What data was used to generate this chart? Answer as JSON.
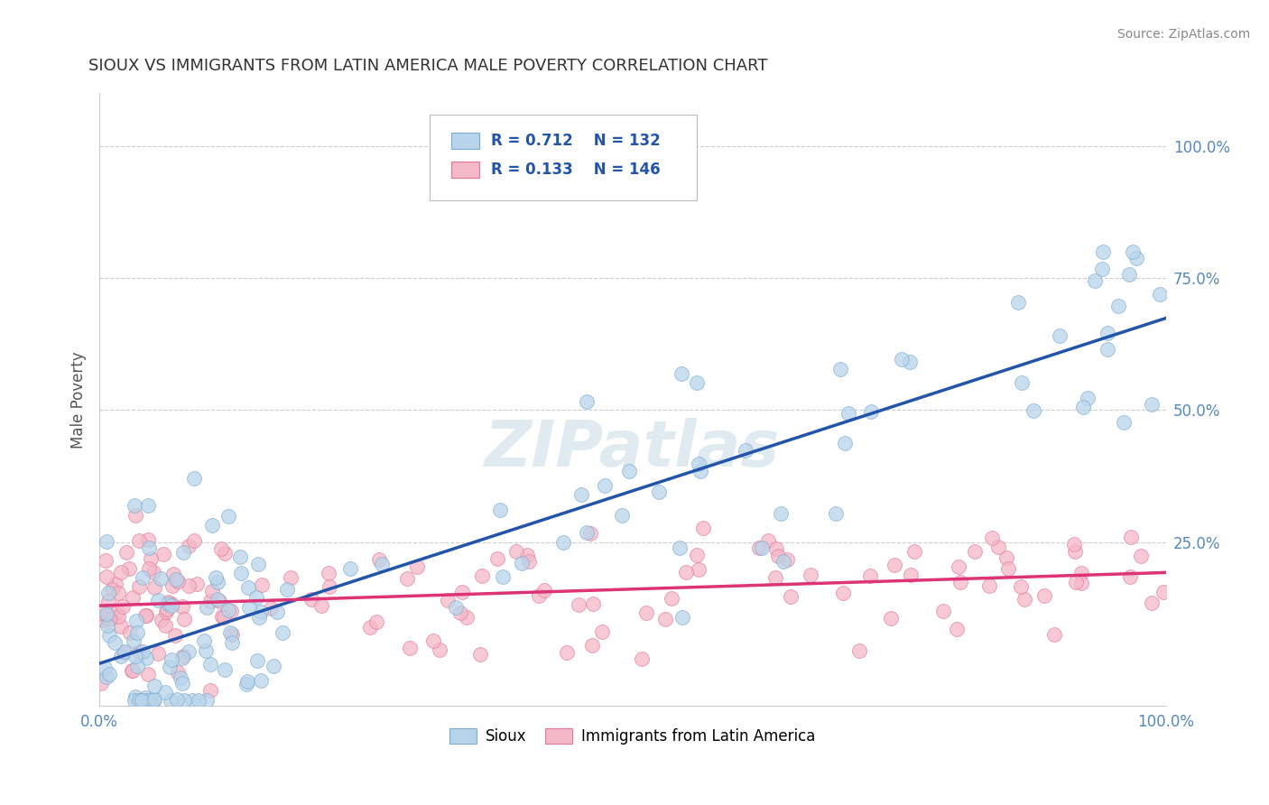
{
  "title": "SIOUX VS IMMIGRANTS FROM LATIN AMERICA MALE POVERTY CORRELATION CHART",
  "source": "Source: ZipAtlas.com",
  "ylabel": "Male Poverty",
  "sioux_color": "#b8d4ea",
  "sioux_edge": "#7aaad0",
  "latin_color": "#f4b8c8",
  "latin_edge": "#e07898",
  "line_sioux_color": "#2255aa",
  "line_latin_color": "#dd3377",
  "R_sioux": 0.712,
  "N_sioux": 132,
  "R_latin": 0.133,
  "N_latin": 146,
  "watermark_text": "ZIPatlas",
  "background_color": "#ffffff",
  "grid_color": "#cccccc",
  "title_color": "#333333",
  "source_color": "#888888",
  "tick_color": "#5588bb",
  "ylabel_color": "#555555"
}
